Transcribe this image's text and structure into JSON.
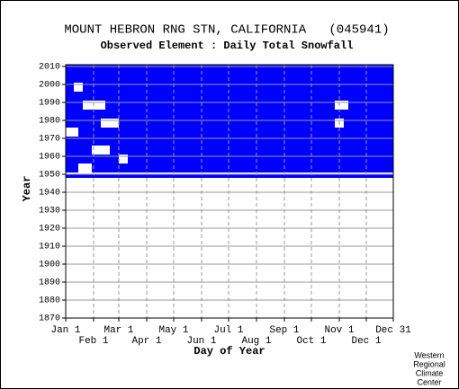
{
  "chart_data": {
    "type": "availability",
    "title": "MOUNT HEBRON RNG STN, CALIFORNIA   (045941)",
    "subtitle": "Observed Element : Daily Total Snowfall",
    "x_label": "Day of Year",
    "y_label": "Year",
    "credit": [
      "Western",
      "Regional",
      "Climate",
      "Center"
    ],
    "color": "#0000ff",
    "xlim": [
      1,
      365
    ],
    "ylim": [
      1870,
      2011
    ],
    "xticks": [
      {
        "value": 1,
        "label": "Jan 1"
      },
      {
        "value": 32,
        "label": "Feb 1"
      },
      {
        "value": 60,
        "label": "Mar 1"
      },
      {
        "value": 91,
        "label": "Apr 1"
      },
      {
        "value": 121,
        "label": "May 1"
      },
      {
        "value": 152,
        "label": "Jun 1"
      },
      {
        "value": 182,
        "label": "Jul 1"
      },
      {
        "value": 213,
        "label": "Aug 1"
      },
      {
        "value": 244,
        "label": "Sep 1"
      },
      {
        "value": 274,
        "label": "Oct 1"
      },
      {
        "value": 305,
        "label": "Nov 1"
      },
      {
        "value": 335,
        "label": "Dec 1"
      },
      {
        "value": 365,
        "label": "Dec 31"
      }
    ],
    "yticks": [
      1870,
      1880,
      1890,
      1900,
      1910,
      1920,
      1930,
      1940,
      1950,
      1960,
      1970,
      1980,
      1990,
      2000,
      2010
    ],
    "periods": [
      {
        "from_year": 1948,
        "to_year": 1949,
        "observed": [
          [
            1,
            365
          ]
        ]
      },
      {
        "from_year": 1951,
        "to_year": 1955,
        "observed": [
          [
            1,
            15
          ],
          [
            30,
            365
          ]
        ]
      },
      {
        "from_year": 1956,
        "to_year": 1960,
        "observed": [
          [
            1,
            60
          ],
          [
            70,
            365
          ]
        ]
      },
      {
        "from_year": 1961,
        "to_year": 1965,
        "observed": [
          [
            1,
            30
          ],
          [
            50,
            365
          ]
        ]
      },
      {
        "from_year": 1966,
        "to_year": 1970,
        "observed": [
          [
            1,
            365
          ]
        ]
      },
      {
        "from_year": 1971,
        "to_year": 1975,
        "observed": [
          [
            15,
            365
          ]
        ]
      },
      {
        "from_year": 1976,
        "to_year": 1980,
        "observed": [
          [
            1,
            40
          ],
          [
            60,
            300
          ],
          [
            310,
            365
          ]
        ]
      },
      {
        "from_year": 1981,
        "to_year": 1985,
        "observed": [
          [
            1,
            365
          ]
        ]
      },
      {
        "from_year": 1986,
        "to_year": 1990,
        "observed": [
          [
            1,
            20
          ],
          [
            45,
            300
          ],
          [
            315,
            365
          ]
        ]
      },
      {
        "from_year": 1991,
        "to_year": 1995,
        "observed": [
          [
            1,
            365
          ]
        ]
      },
      {
        "from_year": 1996,
        "to_year": 2000,
        "observed": [
          [
            1,
            10
          ],
          [
            20,
            365
          ]
        ]
      },
      {
        "from_year": 2001,
        "to_year": 2010,
        "observed": [
          [
            1,
            365
          ]
        ]
      }
    ]
  }
}
